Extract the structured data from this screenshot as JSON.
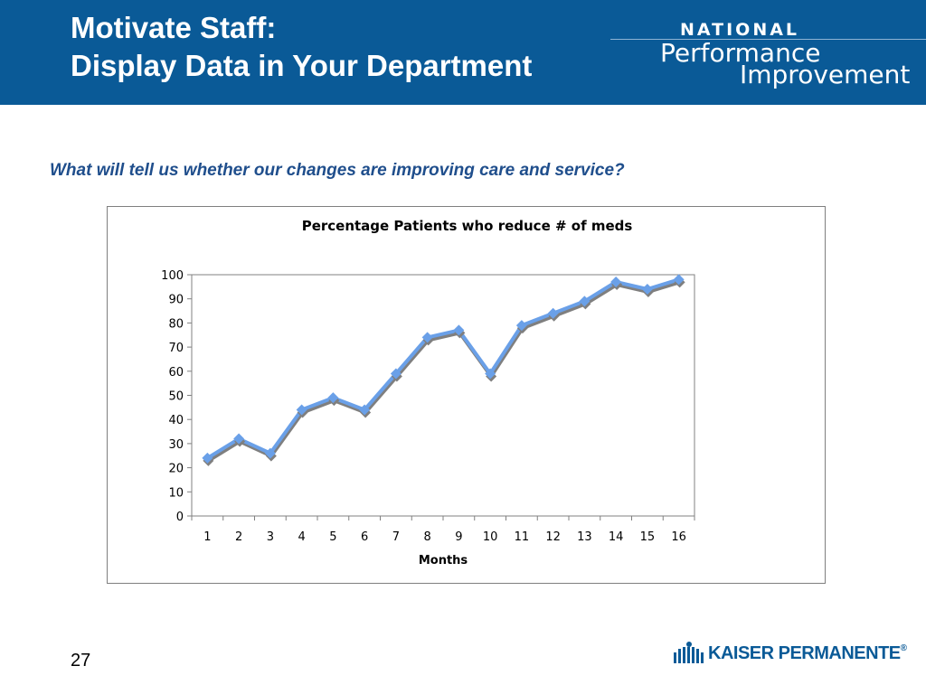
{
  "header": {
    "title_line1": "Motivate Staff:",
    "title_line2": "Display Data in Your Department",
    "logo": {
      "line1": "NATIONAL",
      "line2": "Performance",
      "line3": "Improvement"
    }
  },
  "question": "What will tell us whether our changes are improving care and service?",
  "chart_data": {
    "type": "line",
    "title": "Percentage Patients who reduce # of meds",
    "xlabel": "Months",
    "ylabel": "",
    "categories": [
      "1",
      "2",
      "3",
      "4",
      "5",
      "6",
      "7",
      "8",
      "9",
      "10",
      "11",
      "12",
      "13",
      "14",
      "15",
      "16"
    ],
    "series": [
      {
        "values": [
          24,
          32,
          26,
          44,
          49,
          44,
          59,
          74,
          77,
          59,
          79,
          84,
          89,
          97,
          94,
          98
        ]
      }
    ],
    "ylim": [
      0,
      100
    ],
    "yticks": [
      0,
      10,
      20,
      30,
      40,
      50,
      60,
      70,
      80,
      90,
      100
    ],
    "grid": false,
    "legend": "none",
    "colors": {
      "line": "#6aa0e8",
      "shadow": "#7f7f7f",
      "marker": "#6aa0e8"
    }
  },
  "footer": {
    "page_number": "27",
    "brand": "KAISER PERMANENTE",
    "brand_mark": "®"
  }
}
